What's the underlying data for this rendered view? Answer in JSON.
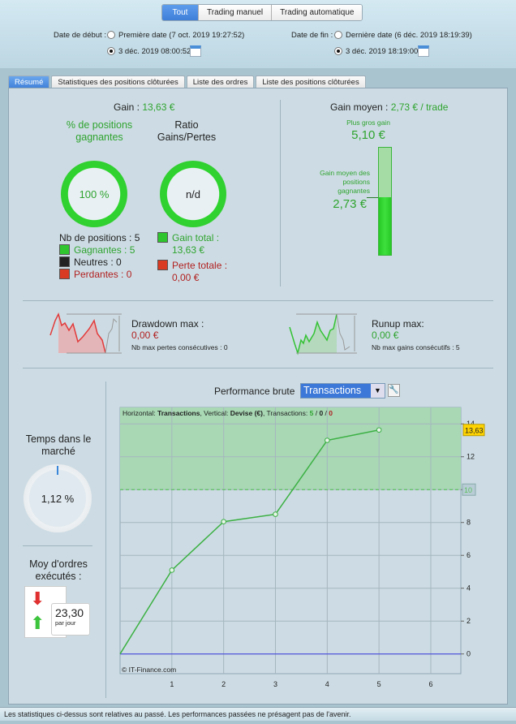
{
  "filter": {
    "options": [
      "Tout",
      "Trading manuel",
      "Trading automatique"
    ],
    "selected": "Tout"
  },
  "dates": {
    "start_label": "Date de début :",
    "start_first": "Première date (7 oct. 2019 19:27:52)",
    "start_custom": "3 déc. 2019 08:00:52",
    "start_selected": "custom",
    "end_label": "Date de fin :",
    "end_last": "Dernière date (6 déc. 2019 18:19:39)",
    "end_custom": "3 déc. 2019 18:19:00",
    "end_selected": "custom"
  },
  "tabs": [
    "Résumé",
    "Statistiques des positions clôturées",
    "Liste des ordres",
    "Liste des positions clôturées"
  ],
  "summary": {
    "gain_label": "Gain :",
    "gain_value": "13,63 €",
    "pct_title": "% de positions gagnantes",
    "pct_value": "100 %",
    "ratio_title": "Ratio Gains/Pertes",
    "ratio_value": "n/d",
    "nb_positions": "Nb de positions : 5",
    "gagnantes": "Gagnantes : 5",
    "neutres": "Neutres : 0",
    "perdantes": "Perdantes : 0",
    "gain_total_label": "Gain total :",
    "gain_total_value": "13,63 €",
    "perte_totale_label": "Perte totale :",
    "perte_totale_value": "0,00 €",
    "avg_label": "Gain moyen :",
    "avg_value": "2,73 € / trade",
    "biggest_label": "Plus gros gain",
    "biggest_value": "5,10 €",
    "avg_win_label": "Gain moyen des positions gagnantes",
    "avg_win_value": "2,73 €",
    "avg_win_fraction": 0.535,
    "drawdown_label": "Drawdown max :",
    "drawdown_value": "0,00 €",
    "drawdown_sub": "Nb max pertes consécutives : 0",
    "runup_label": "Runup max:",
    "runup_value": "0,00 €",
    "runup_sub": "Nb max gains consécutifs : 5",
    "market_label": "Temps dans le marché",
    "market_value": "1,12 %",
    "market_fraction": 0.0112,
    "orders_label": "Moy d'ordres exécutés :",
    "orders_value": "23,30",
    "orders_unit": "par jour"
  },
  "performance": {
    "label": "Performance brute",
    "select": "Transactions"
  },
  "chart_data": {
    "type": "line",
    "header": {
      "h_label": "Horizontal:",
      "h_value": "Transactions",
      "v_label": ", Vertical:",
      "v_value": "Devise (€)",
      "t_label": ", Transactions:",
      "wins": "5",
      "neutral": "0",
      "losses": "0"
    },
    "x": [
      0,
      1,
      2,
      3,
      4,
      5
    ],
    "values": [
      0,
      5.1,
      8.05,
      8.5,
      13.0,
      13.63
    ],
    "xlim": [
      0,
      6.58
    ],
    "ylim": [
      -1.2,
      15
    ],
    "xticks": [
      1,
      2,
      3,
      4,
      5,
      6
    ],
    "yticks": [
      0,
      2,
      4,
      6,
      8,
      10,
      12,
      14
    ],
    "last_value_label": "13,63",
    "threshold": 10,
    "threshold_label": "10",
    "grid": true,
    "colors": {
      "line": "#3cb043",
      "zero": "#3a3ae0",
      "zone": "#a8d8b4"
    },
    "watermark": "© IT-Finance.com"
  },
  "footer": "Les statistiques ci-dessus sont relatives au passé. Les performances passées ne présagent pas de l'avenir."
}
